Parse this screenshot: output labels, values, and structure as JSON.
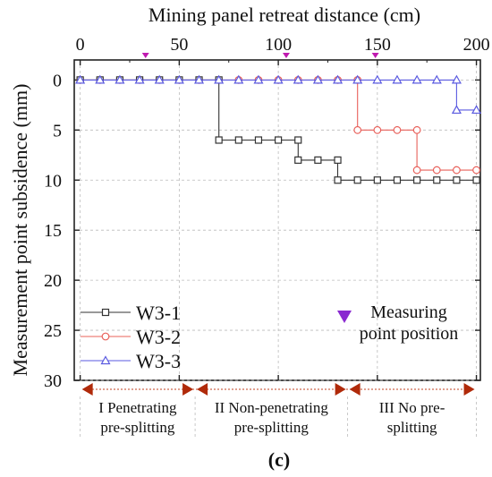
{
  "chart_data": {
    "type": "line",
    "xlabel": "Mining panel retreat distance (cm)",
    "ylabel": "Measurement point subsidence (mm)",
    "panel_label": "(c)",
    "xlim": [
      -3,
      202
    ],
    "ylim": [
      30,
      -2
    ],
    "y_inverted": true,
    "x_axis_position": "top",
    "grid": true,
    "x_ticks": [
      0,
      50,
      100,
      150,
      200
    ],
    "y_ticks": [
      0,
      5,
      10,
      15,
      20,
      25,
      30
    ],
    "legend_position": "bottom-left",
    "series": [
      {
        "name": "W3-1",
        "color": "#333333",
        "marker": "square",
        "step": true,
        "points": [
          [
            0,
            0
          ],
          [
            10,
            0
          ],
          [
            20,
            0
          ],
          [
            30,
            0
          ],
          [
            40,
            0
          ],
          [
            50,
            0
          ],
          [
            60,
            0
          ],
          [
            70,
            0
          ],
          [
            70,
            6
          ],
          [
            80,
            6
          ],
          [
            90,
            6
          ],
          [
            100,
            6
          ],
          [
            110,
            6
          ],
          [
            110,
            8
          ],
          [
            120,
            8
          ],
          [
            130,
            8
          ],
          [
            130,
            10
          ],
          [
            140,
            10
          ],
          [
            150,
            10
          ],
          [
            160,
            10
          ],
          [
            170,
            10
          ],
          [
            180,
            10
          ],
          [
            190,
            10
          ],
          [
            200,
            10
          ]
        ]
      },
      {
        "name": "W3-2",
        "color": "#e8605a",
        "marker": "circle",
        "step": true,
        "points": [
          [
            0,
            0
          ],
          [
            10,
            0
          ],
          [
            20,
            0
          ],
          [
            30,
            0
          ],
          [
            40,
            0
          ],
          [
            50,
            0
          ],
          [
            60,
            0
          ],
          [
            70,
            0
          ],
          [
            80,
            0
          ],
          [
            90,
            0
          ],
          [
            100,
            0
          ],
          [
            110,
            0
          ],
          [
            120,
            0
          ],
          [
            130,
            0
          ],
          [
            140,
            0
          ],
          [
            140,
            5
          ],
          [
            150,
            5
          ],
          [
            160,
            5
          ],
          [
            170,
            5
          ],
          [
            170,
            9
          ],
          [
            180,
            9
          ],
          [
            190,
            9
          ],
          [
            200,
            9
          ]
        ]
      },
      {
        "name": "W3-3",
        "color": "#5a5ae0",
        "marker": "triangle",
        "step": true,
        "points": [
          [
            0,
            0
          ],
          [
            10,
            0
          ],
          [
            20,
            0
          ],
          [
            30,
            0
          ],
          [
            40,
            0
          ],
          [
            50,
            0
          ],
          [
            60,
            0
          ],
          [
            70,
            0
          ],
          [
            80,
            0
          ],
          [
            90,
            0
          ],
          [
            100,
            0
          ],
          [
            110,
            0
          ],
          [
            120,
            0
          ],
          [
            130,
            0
          ],
          [
            140,
            0
          ],
          [
            150,
            0
          ],
          [
            160,
            0
          ],
          [
            170,
            0
          ],
          [
            180,
            0
          ],
          [
            190,
            0
          ],
          [
            190,
            3
          ],
          [
            200,
            3
          ]
        ]
      }
    ],
    "measuring_points": {
      "x": [
        33,
        104,
        149
      ],
      "label": "Measuring point position",
      "label_lines": [
        "Measuring",
        "point position"
      ],
      "color": "#c01ab0"
    },
    "phases": [
      {
        "x_start": 0,
        "x_end": 58,
        "lines": [
          "I Penetrating",
          "pre-splitting"
        ]
      },
      {
        "x_start": 58,
        "x_end": 135,
        "lines": [
          "II Non-penetrating",
          "pre-splitting"
        ]
      },
      {
        "x_start": 135,
        "x_end": 200,
        "lines": [
          "III No pre-",
          "splitting"
        ]
      }
    ],
    "phase_arrow_color": "#b02a0a",
    "phase_line_color": "#c04020"
  }
}
